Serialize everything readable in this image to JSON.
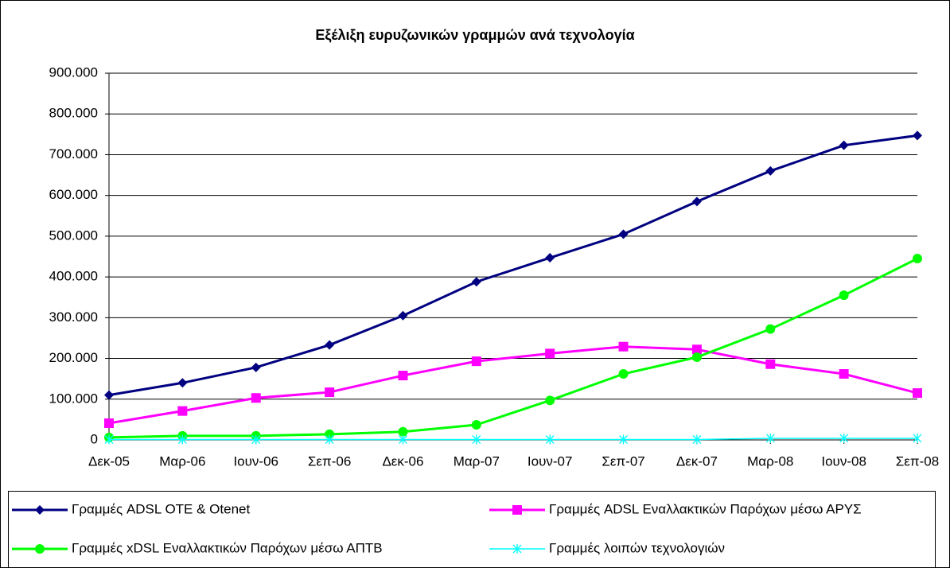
{
  "chart_data": {
    "type": "line",
    "title": "Εξέλιξη ευρυζωνικών γραμμών ανά τεχνολογία",
    "categories": [
      "Δεκ-05",
      "Μαρ-06",
      "Ιουν-06",
      "Σεπ-06",
      "Δεκ-06",
      "Μαρ-07",
      "Ιουν-07",
      "Σεπ-07",
      "Δεκ-07",
      "Μαρ-08",
      "Ιουν-08",
      "Σεπ-08"
    ],
    "series": [
      {
        "name": "Γραμμές ADSL OTE & Otenet",
        "color": "#000080",
        "marker": "diamond",
        "values": [
          110000,
          140000,
          178000,
          233000,
          305000,
          388000,
          447000,
          505000,
          585000,
          660000,
          723000,
          747000
        ]
      },
      {
        "name": "Γραμμές ADSL Εναλλακτικών Παρόχων μέσω ΑΡΥΣ",
        "color": "#ff00ff",
        "marker": "square",
        "values": [
          41000,
          71000,
          103000,
          117000,
          158000,
          193000,
          212000,
          229000,
          222000,
          186000,
          162000,
          115000
        ]
      },
      {
        "name": "Γραμμές xDSL Εναλλακτικών Παρόχων μέσω ΑΠΤΒ",
        "color": "#00ff00",
        "marker": "circle",
        "values": [
          6000,
          10000,
          10000,
          14000,
          20000,
          37000,
          97000,
          162000,
          203000,
          272000,
          355000,
          445000
        ]
      },
      {
        "name": "Γραμμές λοιπών τεχνολογιών",
        "color": "#00ffff",
        "marker": "star",
        "values": [
          1000,
          1000,
          1000,
          1000,
          1000,
          1000,
          1000,
          1000,
          1000,
          4000,
          4000,
          4000
        ]
      }
    ],
    "ylim": [
      0,
      900000
    ],
    "yticks": [
      0,
      {
        "value": 100000,
        "label": "100.000"
      },
      {
        "value": 200000,
        "label": "200.000"
      },
      {
        "value": 300000,
        "label": "300.000"
      },
      {
        "value": 400000,
        "label": "400.000"
      },
      {
        "value": 500000,
        "label": "500.000"
      },
      {
        "value": 600000,
        "label": "600.000"
      },
      {
        "value": 700000,
        "label": "700.000"
      },
      {
        "value": 800000,
        "label": "800.000"
      },
      {
        "value": 900000,
        "label": "900.000"
      }
    ],
    "grid": true,
    "legend": "bottom"
  }
}
